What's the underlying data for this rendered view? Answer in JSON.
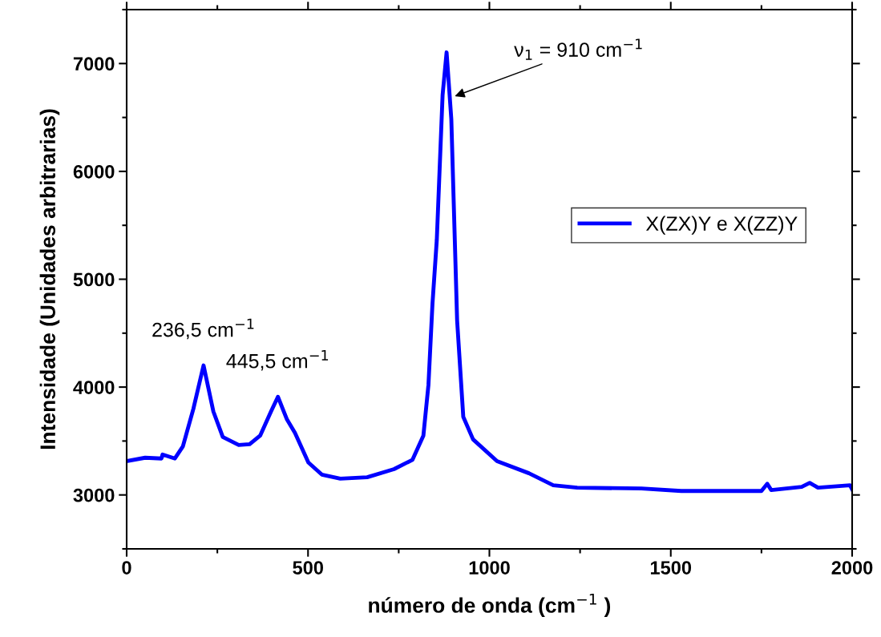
{
  "chart_data": {
    "type": "line",
    "xlabel": "número de onda (cm$^{−1}$ )",
    "ylabel": "Intensidade (Unidades arbitrarias)",
    "xlim": [
      0,
      2000
    ],
    "xticks": [
      0,
      500,
      1000,
      1500,
      2000
    ],
    "ylim": [
      2500,
      7500
    ],
    "yticks": [
      3000,
      4000,
      5000,
      6000,
      7000
    ],
    "grid": false,
    "legend": "right",
    "marker": "none",
    "line_style": "solid",
    "series": [
      {
        "name": "X(ZX)Y e X(ZZ)Y",
        "color": "#0000ff",
        "x": [
          0,
          51,
          96,
          99,
          133,
          155,
          184,
          212,
          239,
          265,
          309,
          339,
          368,
          398,
          417,
          442,
          464,
          501,
          538,
          589,
          663,
          737,
          788,
          818,
          832,
          843,
          855,
          871,
          882,
          895,
          911,
          928,
          955,
          1021,
          1109,
          1176,
          1242,
          1419,
          1529,
          1750,
          1766,
          1777,
          1861,
          1883,
          1906,
          1994,
          2000
        ],
        "values": [
          3313,
          3345,
          3338,
          3375,
          3338,
          3450,
          3799,
          4201,
          3774,
          3537,
          3463,
          3470,
          3550,
          3774,
          3910,
          3699,
          3575,
          3301,
          3189,
          3151,
          3164,
          3239,
          3326,
          3550,
          4022,
          4769,
          5366,
          6709,
          7104,
          6485,
          4619,
          3724,
          3515,
          3313,
          3201,
          3090,
          3067,
          3060,
          3037,
          3037,
          3104,
          3045,
          3075,
          3112,
          3067,
          3090,
          3052
        ]
      }
    ],
    "annotations": [
      {
        "text": "236,5 cm$^{−1}$",
        "x": 212,
        "y": 4201
      },
      {
        "text": "445,5 cm$^{−1}$",
        "x": 417,
        "y": 3910
      },
      {
        "text": "ν$_{1}$ = 910 cm$^{−1}$",
        "x": 899,
        "y": 6690
      }
    ]
  }
}
